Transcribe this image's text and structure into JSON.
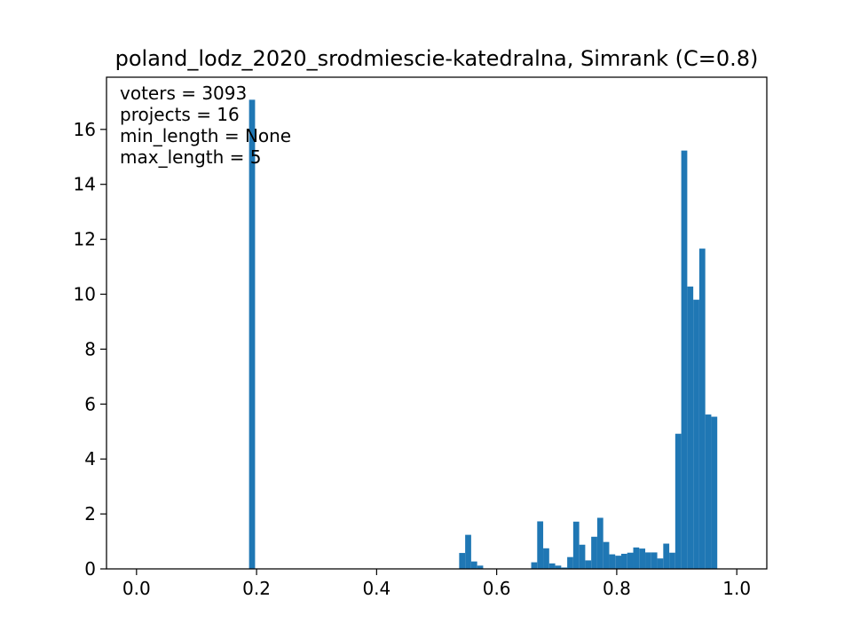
{
  "chart_data": {
    "type": "bar",
    "title": "poland_lodz_2020_srodmiescie-katedralna, Simrank (C=0.8)",
    "xlabel": "",
    "ylabel": "",
    "xlim": [
      -0.05,
      1.05
    ],
    "ylim": [
      0,
      17.9
    ],
    "xticks": [
      0.0,
      0.2,
      0.4,
      0.6,
      0.8,
      1.0
    ],
    "xtick_labels": [
      "0.0",
      "0.2",
      "0.4",
      "0.6",
      "0.8",
      "1.0"
    ],
    "yticks": [
      0,
      2,
      4,
      6,
      8,
      10,
      12,
      14,
      16
    ],
    "ytick_labels": [
      "0",
      "2",
      "4",
      "6",
      "8",
      "10",
      "12",
      "14",
      "16"
    ],
    "grid": false,
    "bar_color": "#1f77b4",
    "bin_width": 0.01,
    "bins": [
      {
        "x": 0.1925,
        "value": 17.08
      },
      {
        "x": 0.5425,
        "value": 0.58
      },
      {
        "x": 0.5525,
        "value": 1.24
      },
      {
        "x": 0.5625,
        "value": 0.27
      },
      {
        "x": 0.5725,
        "value": 0.12
      },
      {
        "x": 0.6625,
        "value": 0.24
      },
      {
        "x": 0.6725,
        "value": 1.73
      },
      {
        "x": 0.6825,
        "value": 0.75
      },
      {
        "x": 0.6925,
        "value": 0.2
      },
      {
        "x": 0.7025,
        "value": 0.12
      },
      {
        "x": 0.7125,
        "value": 0.05
      },
      {
        "x": 0.7225,
        "value": 0.43
      },
      {
        "x": 0.7325,
        "value": 1.72
      },
      {
        "x": 0.7425,
        "value": 0.88
      },
      {
        "x": 0.7525,
        "value": 0.31
      },
      {
        "x": 0.7625,
        "value": 1.17
      },
      {
        "x": 0.7725,
        "value": 1.86
      },
      {
        "x": 0.7825,
        "value": 0.98
      },
      {
        "x": 0.7925,
        "value": 0.53
      },
      {
        "x": 0.8025,
        "value": 0.48
      },
      {
        "x": 0.8125,
        "value": 0.55
      },
      {
        "x": 0.8225,
        "value": 0.59
      },
      {
        "x": 0.8325,
        "value": 0.78
      },
      {
        "x": 0.8425,
        "value": 0.74
      },
      {
        "x": 0.8525,
        "value": 0.6
      },
      {
        "x": 0.8625,
        "value": 0.6
      },
      {
        "x": 0.8725,
        "value": 0.38
      },
      {
        "x": 0.8825,
        "value": 0.92
      },
      {
        "x": 0.8925,
        "value": 0.59
      },
      {
        "x": 0.9025,
        "value": 4.92
      },
      {
        "x": 0.9125,
        "value": 15.23
      },
      {
        "x": 0.9225,
        "value": 10.28
      },
      {
        "x": 0.9325,
        "value": 9.8
      },
      {
        "x": 0.9425,
        "value": 11.66
      },
      {
        "x": 0.9525,
        "value": 5.62
      },
      {
        "x": 0.9625,
        "value": 5.54
      }
    ],
    "annotations": [
      "voters = 3093",
      "projects = 16",
      "min_length = None",
      "max_length = 5"
    ]
  }
}
